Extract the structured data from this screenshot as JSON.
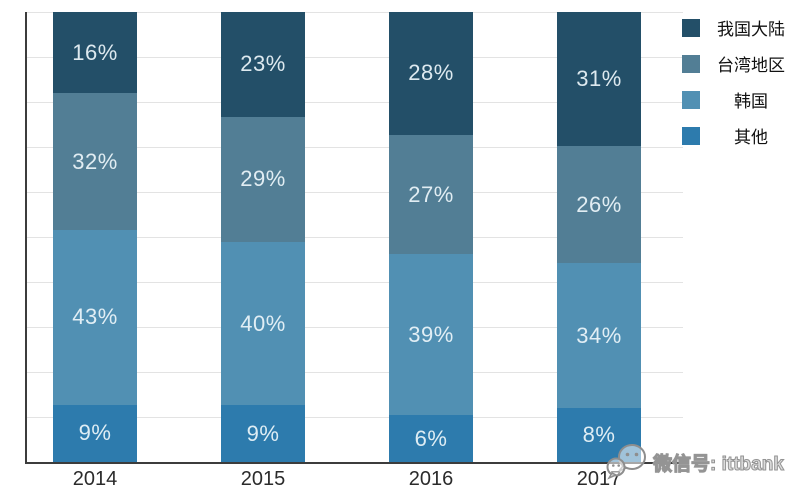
{
  "chart_data": {
    "type": "bar",
    "variant": "stacked-column",
    "categories": [
      "2014",
      "2015",
      "2016",
      "2017"
    ],
    "series": [
      {
        "key": "mainland-china",
        "name": "我国大陆",
        "color": "#234F68",
        "values": [
          16,
          23,
          28,
          31
        ]
      },
      {
        "key": "taiwan",
        "name": "台湾地区",
        "color": "#527E95",
        "values": [
          32,
          29,
          27,
          26
        ]
      },
      {
        "key": "korea",
        "name": "韩国",
        "color": "#5190B3",
        "values": [
          43,
          40,
          39,
          34
        ]
      },
      {
        "key": "other",
        "name": "其他",
        "color": "#2D7BAD",
        "values": [
          9,
          9,
          6,
          8
        ]
      }
    ],
    "value_suffix": "%",
    "ylim": [
      0,
      100
    ],
    "grid": {
      "horizontal": true,
      "step_percent": 10
    },
    "legend_position": "top-right"
  },
  "watermark": {
    "text": "微信号: ittbank",
    "icon": "wechat-icon"
  },
  "colors": {
    "axis": "#3C3C3C",
    "gridline": "#E3E3E3",
    "tick_label": "#2B2B2B",
    "segment_label": "#ECF5FA"
  }
}
